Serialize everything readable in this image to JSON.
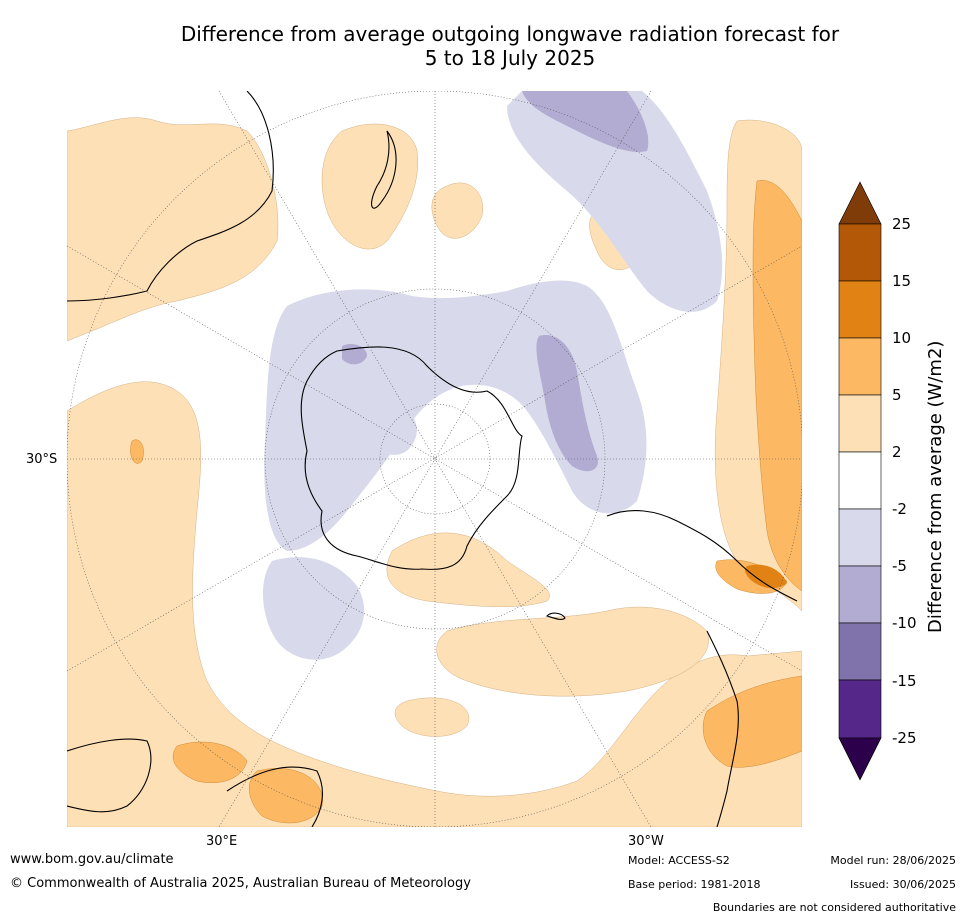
{
  "title_line1": "Difference from average outgoing longwave radiation forecast for",
  "title_line2": "5 to 18 July 2025",
  "axis_labels": {
    "lat": "30°S",
    "lon_east": "30°E",
    "lon_west": "30°W"
  },
  "colorbar": {
    "label": "Difference from average (W/m2)",
    "ticks": [
      "25",
      "15",
      "10",
      "5",
      "2",
      "-2",
      "-5",
      "-10",
      "-15",
      "-25"
    ],
    "colors": {
      "over": "#7f3b08",
      "b15_25": "#b35806",
      "b10_15": "#e08214",
      "b5_10": "#fdb863",
      "b2_5": "#fee0b6",
      "neutral": "#ffffff",
      "bm2_m5": "#d8daeb",
      "bm5_m10": "#b2abd2",
      "bm10_m15": "#8073ac",
      "bm15_m25": "#542788",
      "under": "#2d004b"
    }
  },
  "footer": {
    "website": "www.bom.gov.au/climate",
    "copyright": "© Commonwealth of Australia 2025, Australian Bureau of Meteorology",
    "model": "Model: ACCESS-S2",
    "base_period": "Base period: 1981-2018",
    "model_run": "Model run: 28/06/2025",
    "issued": "Issued: 30/06/2025",
    "disclaimer": "Boundaries are not considered authoritative"
  }
}
